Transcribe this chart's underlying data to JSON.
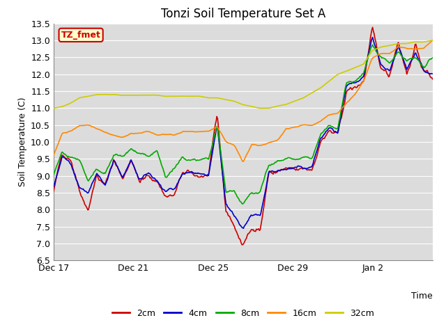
{
  "title": "Tonzi Soil Temperature Set A",
  "xlabel": "Time",
  "ylabel": "Soil Temperature (C)",
  "ylim": [
    6.5,
    13.5
  ],
  "bg_color": "#dcdcdc",
  "label_box": "TZ_fmet",
  "label_box_bg": "#ffffcc",
  "label_box_border": "#cc0000",
  "label_box_text": "#cc0000",
  "series": {
    "2cm": {
      "color": "#cc0000",
      "lw": 1.2
    },
    "4cm": {
      "color": "#0000cc",
      "lw": 1.2
    },
    "8cm": {
      "color": "#00aa00",
      "lw": 1.2
    },
    "16cm": {
      "color": "#ff8800",
      "lw": 1.2
    },
    "32cm": {
      "color": "#cccc00",
      "lw": 1.2
    }
  },
  "xtick_labels": [
    "Dec 17",
    "Dec 21",
    "Dec 25",
    "Dec 29",
    "Jan 2"
  ],
  "xtick_pos": [
    0,
    4,
    8,
    12,
    16
  ]
}
